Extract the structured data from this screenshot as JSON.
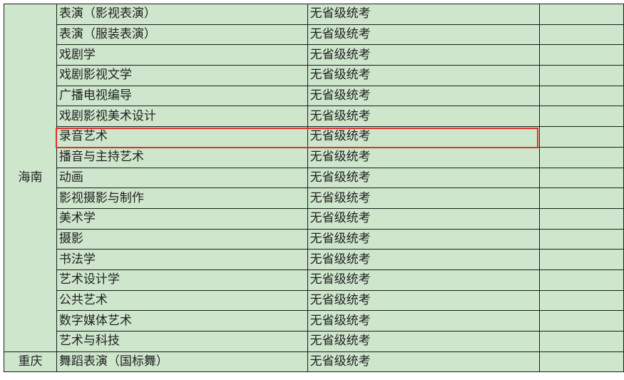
{
  "highlight_color": "#e0322a",
  "groups": [
    {
      "province": "海南",
      "rows": [
        {
          "major": "表演（影视表演）",
          "status": "无省级统考"
        },
        {
          "major": "表演（服装表演）",
          "status": "无省级统考"
        },
        {
          "major": "戏剧学",
          "status": "无省级统考"
        },
        {
          "major": "戏剧影视文学",
          "status": "无省级统考"
        },
        {
          "major": "广播电视编导",
          "status": "无省级统考"
        },
        {
          "major": "戏剧影视美术设计",
          "status": "无省级统考"
        },
        {
          "major": "录音艺术",
          "status": "无省级统考",
          "highlighted": true
        },
        {
          "major": "播音与主持艺术",
          "status": "无省级统考"
        },
        {
          "major": "动画",
          "status": "无省级统考"
        },
        {
          "major": "影视摄影与制作",
          "status": "无省级统考"
        },
        {
          "major": "美术学",
          "status": "无省级统考"
        },
        {
          "major": "摄影",
          "status": "无省级统考"
        },
        {
          "major": "书法学",
          "status": "无省级统考"
        },
        {
          "major": "艺术设计学",
          "status": "无省级统考"
        },
        {
          "major": "公共艺术",
          "status": "无省级统考"
        },
        {
          "major": "数字媒体艺术",
          "status": "无省级统考"
        },
        {
          "major": "艺术与科技",
          "status": "无省级统考"
        }
      ]
    },
    {
      "province": "重庆",
      "rows": [
        {
          "major": "舞蹈表演（国标舞）",
          "status": "无省级统考"
        }
      ]
    }
  ]
}
